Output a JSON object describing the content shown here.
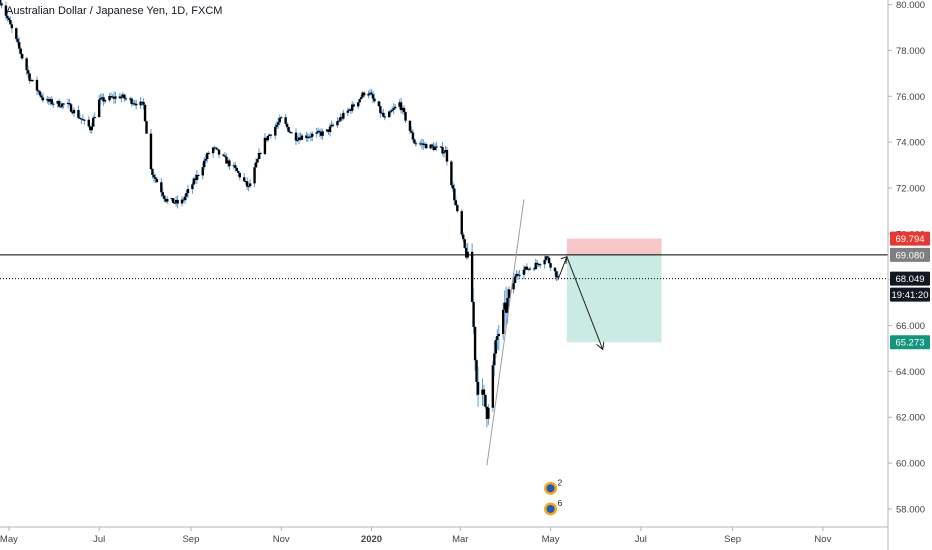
{
  "header": {
    "title": "Australian Dollar / Japanese Yen, 1D, FXCM"
  },
  "colors": {
    "background": "#ffffff",
    "candle": "#000000",
    "wick": "#5b9bd5",
    "stop_zone": "#f7c6c6",
    "target_zone": "#c9ebe3",
    "price_line": "#000000",
    "label_red": "#e53935",
    "label_gray": "#7f7f7f",
    "label_black": "#131722",
    "label_teal": "#14937d",
    "axis_text": "#444444"
  },
  "chart_data": {
    "type": "candlestick",
    "title": "Australian Dollar / Japanese Yen, 1D, FXCM",
    "x_ticks": [
      {
        "label": "May",
        "date": "2019-05-01"
      },
      {
        "label": "Jul",
        "date": "2019-07-01"
      },
      {
        "label": "Sep",
        "date": "2019-09-01"
      },
      {
        "label": "Nov",
        "date": "2019-11-01"
      },
      {
        "label": "2020",
        "date": "2020-01-01"
      },
      {
        "label": "Mar",
        "date": "2020-03-01"
      },
      {
        "label": "May",
        "date": "2020-05-01"
      },
      {
        "label": "Jul",
        "date": "2020-07-01"
      },
      {
        "label": "Sep",
        "date": "2020-09-01"
      },
      {
        "label": "Nov",
        "date": "2020-11-01"
      }
    ],
    "x_range": [
      "2019-04-25",
      "2020-12-15"
    ],
    "y_ticks": [
      "80.000",
      "78.000",
      "76.000",
      "74.000",
      "72.000",
      "70.000",
      "68.000",
      "66.000",
      "64.000",
      "62.000",
      "60.000",
      "58.000"
    ],
    "ylim": [
      57.3,
      80.2
    ],
    "grid": false,
    "price_path": [
      [
        "2019-04-25",
        80.2
      ],
      [
        "2019-05-05",
        78.6
      ],
      [
        "2019-05-15",
        76.8
      ],
      [
        "2019-05-25",
        75.8
      ],
      [
        "2019-06-10",
        75.6
      ],
      [
        "2019-06-25",
        74.6
      ],
      [
        "2019-07-01",
        75.8
      ],
      [
        "2019-07-15",
        76.0
      ],
      [
        "2019-07-31",
        75.6
      ],
      [
        "2019-08-05",
        72.8
      ],
      [
        "2019-08-15",
        71.5
      ],
      [
        "2019-08-25",
        71.3
      ],
      [
        "2019-09-05",
        72.5
      ],
      [
        "2019-09-15",
        73.8
      ],
      [
        "2019-10-01",
        72.8
      ],
      [
        "2019-10-10",
        72.0
      ],
      [
        "2019-10-20",
        74.0
      ],
      [
        "2019-11-01",
        75.0
      ],
      [
        "2019-11-10",
        74.2
      ],
      [
        "2019-12-01",
        74.4
      ],
      [
        "2019-12-20",
        75.6
      ],
      [
        "2019-12-29",
        76.3
      ],
      [
        "2020-01-10",
        75.0
      ],
      [
        "2020-01-20",
        75.7
      ],
      [
        "2020-01-30",
        74.0
      ],
      [
        "2020-02-10",
        73.8
      ],
      [
        "2020-02-20",
        73.6
      ],
      [
        "2020-03-01",
        70.2
      ],
      [
        "2020-03-08",
        68.2
      ],
      [
        "2020-03-12",
        63.6
      ],
      [
        "2020-03-19",
        62.3
      ],
      [
        "2020-03-26",
        65.5
      ],
      [
        "2020-04-08",
        68.3
      ],
      [
        "2020-04-20",
        68.6
      ],
      [
        "2020-04-28",
        69.0
      ],
      [
        "2020-05-06",
        68.1
      ]
    ],
    "horizontal_lines": [
      {
        "price": 69.08,
        "style": "solid"
      },
      {
        "price": 68.049,
        "style": "dotted"
      }
    ],
    "trend_line": [
      [
        "2020-03-19",
        59.9
      ],
      [
        "2020-04-13",
        71.5
      ]
    ],
    "position": {
      "start": "2020-05-12",
      "end": "2020-07-15",
      "stop": 69.794,
      "entry": 69.08,
      "target": 65.273
    },
    "projection": [
      [
        "2020-05-06",
        68.0
      ],
      [
        "2020-05-12",
        69.0
      ],
      [
        "2020-06-05",
        65.0
      ]
    ],
    "price_labels": [
      {
        "text": "69.794",
        "price": 69.794,
        "color": "#e53935"
      },
      {
        "text": "69.080",
        "price": 69.08,
        "color": "#7f7f7f"
      },
      {
        "text": "68.049",
        "price": 68.049,
        "color": "#131722"
      },
      {
        "text": "19:41:20",
        "price": 67.35,
        "color": "#131722"
      },
      {
        "text": "65.273",
        "price": 65.273,
        "color": "#14937d"
      }
    ],
    "event_badges": [
      {
        "date": "2020-05-01",
        "price": 58.9,
        "count": "2"
      },
      {
        "date": "2020-05-01",
        "price": 58.0,
        "count": "6"
      }
    ]
  }
}
